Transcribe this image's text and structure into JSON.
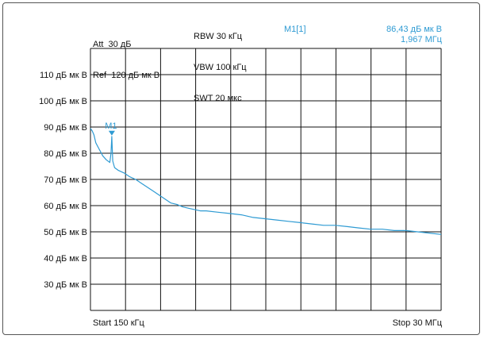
{
  "header": {
    "att": "Att  30 дБ",
    "ref": "Ref  120 дБ мк В",
    "rbw": "RBW 30 кГц",
    "vbw": "VBW 100 кГц",
    "swt": "SWT 20 мкс"
  },
  "marker": {
    "name": "M1[1]",
    "level": "86,43 дБ мк В",
    "freq": "1,967 МГц",
    "label": "M1"
  },
  "colors": {
    "trace": "#2f9bd3",
    "grid": "#111111"
  },
  "chart_data": {
    "type": "line",
    "title": "",
    "xlabel": "",
    "ylabel": "",
    "xlim": [
      0.15,
      30
    ],
    "ylim": [
      20,
      120
    ],
    "x_unit": "МГц",
    "grid": true,
    "x_start_label": "Start 150 кГц",
    "x_stop_label": "Stop 30 МГц",
    "y_ticks": [
      {
        "value": 110,
        "label": "110 дБ мк В"
      },
      {
        "value": 100,
        "label": "100 дБ мк В"
      },
      {
        "value": 90,
        "label": "90 дБ мк В"
      },
      {
        "value": 80,
        "label": "80 дБ мк В"
      },
      {
        "value": 70,
        "label": "70 дБ мк В"
      },
      {
        "value": 60,
        "label": "60 дБ мк В"
      },
      {
        "value": 50,
        "label": "50 дБ мк В"
      },
      {
        "value": 40,
        "label": "40 дБ мк В"
      },
      {
        "value": 30,
        "label": "30 дБ мк В"
      }
    ],
    "series": [
      {
        "x": [
          0.15,
          0.3,
          0.45,
          0.6,
          0.9,
          1.2,
          1.5,
          1.8,
          1.9,
          1.967,
          2.05,
          2.2,
          2.5,
          3.0,
          3.5,
          4.0,
          4.5,
          5.0,
          5.5,
          6.0,
          6.5,
          7.0,
          7.5,
          8.0,
          8.5,
          9.0,
          9.5,
          10.0,
          11.0,
          12.0,
          13.0,
          14.0,
          15.0,
          16.0,
          17.0,
          18.0,
          19.0,
          20.0,
          21.0,
          22.0,
          23.0,
          24.0,
          25.0,
          26.0,
          27.0,
          28.0,
          29.0,
          30.0
        ],
        "y": [
          89.5,
          88.5,
          87.0,
          84.0,
          81.5,
          79.0,
          77.5,
          76.5,
          80.0,
          86.43,
          77.0,
          74.5,
          73.5,
          72.5,
          71.0,
          70.0,
          68.5,
          67.0,
          65.5,
          64.0,
          62.5,
          61.0,
          60.5,
          59.5,
          59.0,
          58.5,
          58.0,
          58.0,
          57.5,
          57.0,
          56.5,
          55.5,
          55.0,
          54.5,
          54.0,
          53.5,
          53.0,
          52.5,
          52.5,
          52.0,
          51.5,
          51.0,
          51.0,
          50.5,
          50.5,
          50.0,
          49.5,
          49.0
        ]
      }
    ]
  }
}
